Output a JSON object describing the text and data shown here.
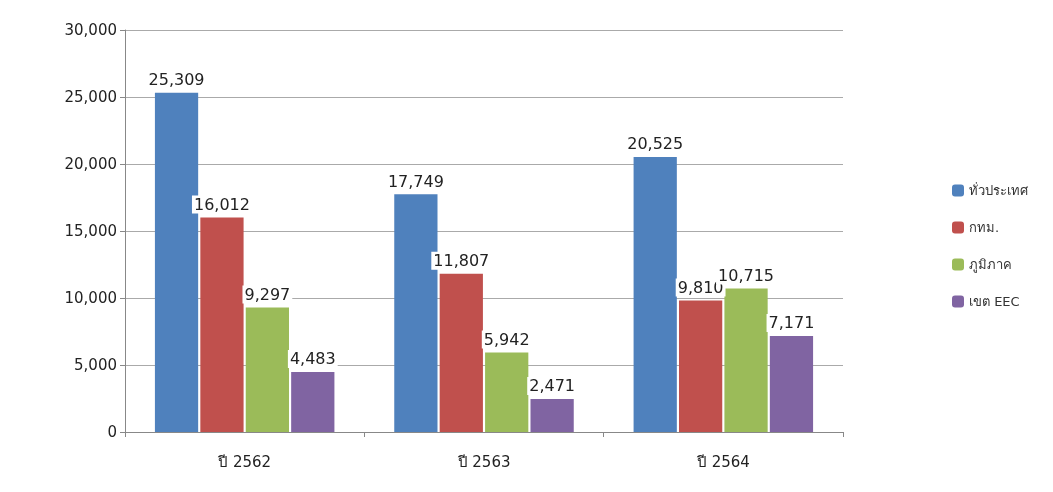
{
  "chart_data": {
    "type": "bar",
    "categories": [
      "ปี 2562",
      "ปี 2563",
      "ปี 2564"
    ],
    "series": [
      {
        "name": "ทั่วประเทศ",
        "color": "#4f81bd",
        "values": [
          25309,
          17749,
          20525
        ],
        "value_labels": [
          "25,309",
          "17,749",
          "20,525"
        ]
      },
      {
        "name": "กทม.",
        "color": "#c0504d",
        "values": [
          16012,
          11807,
          9810
        ],
        "value_labels": [
          "16,012",
          "11,807",
          "9,810"
        ]
      },
      {
        "name": "ภูมิภาค",
        "color": "#9bbb59",
        "values": [
          9297,
          5942,
          10715
        ],
        "value_labels": [
          "9,297",
          "5,942",
          "10,715"
        ]
      },
      {
        "name": "เขต EEC",
        "color": "#8064a2",
        "values": [
          4483,
          2471,
          7171
        ],
        "value_labels": [
          "4,483",
          "2,471",
          "7,171"
        ]
      }
    ],
    "ylim": [
      0,
      30000
    ],
    "yticks": [
      0,
      {
        "value": 5000,
        "label": "5,000"
      },
      {
        "value": 10000,
        "label": "10,000"
      },
      {
        "value": 15000,
        "label": "15,000"
      },
      {
        "value": 20000,
        "label": "20,000"
      },
      {
        "value": 25000,
        "label": "25,000"
      },
      {
        "value": 30000,
        "label": "30,000"
      }
    ],
    "grid": "y",
    "legend": "right"
  }
}
